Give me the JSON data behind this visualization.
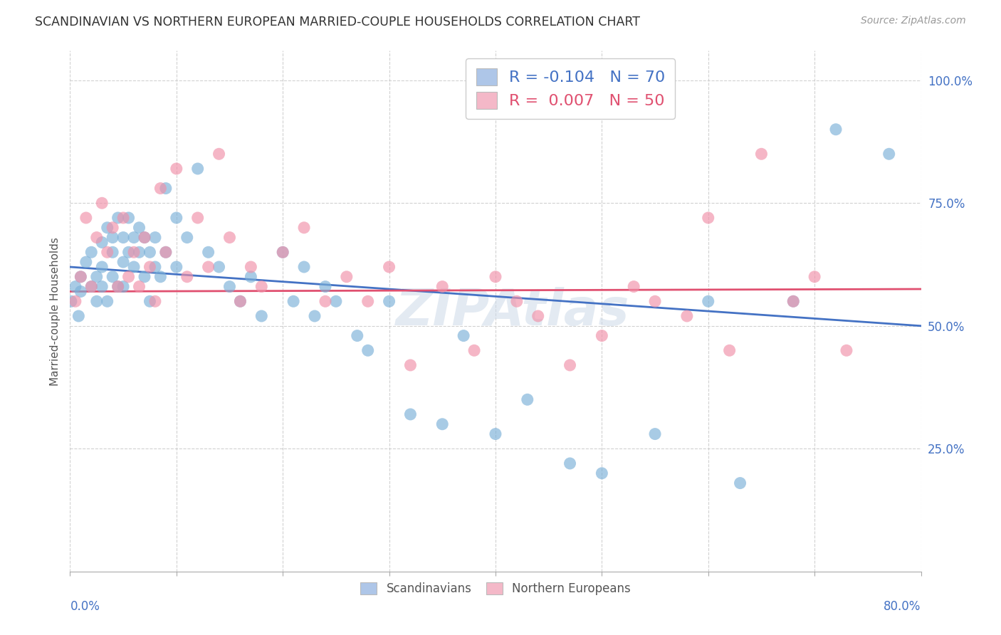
{
  "title": "SCANDINAVIAN VS NORTHERN EUROPEAN MARRIED-COUPLE HOUSEHOLDS CORRELATION CHART",
  "source": "Source: ZipAtlas.com",
  "ylabel": "Married-couple Households",
  "ytick_labels": [
    "25.0%",
    "50.0%",
    "75.0%",
    "100.0%"
  ],
  "ytick_values": [
    0.25,
    0.5,
    0.75,
    1.0
  ],
  "legend_label1": "R = -0.104   N = 70",
  "legend_label2": "R =  0.007   N = 50",
  "legend_color1": "#aec6e8",
  "legend_color2": "#f4b8c8",
  "dot_color1": "#7ab0d8",
  "dot_color2": "#f090a8",
  "trend_color1": "#4472c4",
  "trend_color2": "#e05070",
  "watermark": "ZIPAtlas",
  "xmin": 0.0,
  "xmax": 0.8,
  "ymin": 0.0,
  "ymax": 1.06,
  "trend1_x0": 0.0,
  "trend1_y0": 0.62,
  "trend1_x1": 0.8,
  "trend1_y1": 0.5,
  "trend2_x0": 0.0,
  "trend2_y0": 0.57,
  "trend2_x1": 0.8,
  "trend2_y1": 0.575,
  "scatter1_x": [
    0.001,
    0.005,
    0.008,
    0.01,
    0.01,
    0.015,
    0.02,
    0.02,
    0.025,
    0.025,
    0.03,
    0.03,
    0.03,
    0.035,
    0.035,
    0.04,
    0.04,
    0.04,
    0.045,
    0.045,
    0.05,
    0.05,
    0.05,
    0.055,
    0.055,
    0.06,
    0.06,
    0.065,
    0.065,
    0.07,
    0.07,
    0.075,
    0.075,
    0.08,
    0.08,
    0.085,
    0.09,
    0.09,
    0.1,
    0.1,
    0.11,
    0.12,
    0.13,
    0.14,
    0.15,
    0.16,
    0.17,
    0.18,
    0.2,
    0.21,
    0.22,
    0.23,
    0.24,
    0.25,
    0.27,
    0.28,
    0.3,
    0.32,
    0.35,
    0.37,
    0.4,
    0.43,
    0.47,
    0.5,
    0.55,
    0.6,
    0.63,
    0.68,
    0.72,
    0.77
  ],
  "scatter1_y": [
    0.55,
    0.58,
    0.52,
    0.6,
    0.57,
    0.63,
    0.58,
    0.65,
    0.6,
    0.55,
    0.62,
    0.67,
    0.58,
    0.7,
    0.55,
    0.65,
    0.6,
    0.68,
    0.72,
    0.58,
    0.63,
    0.58,
    0.68,
    0.65,
    0.72,
    0.68,
    0.62,
    0.65,
    0.7,
    0.6,
    0.68,
    0.55,
    0.65,
    0.62,
    0.68,
    0.6,
    0.78,
    0.65,
    0.72,
    0.62,
    0.68,
    0.82,
    0.65,
    0.62,
    0.58,
    0.55,
    0.6,
    0.52,
    0.65,
    0.55,
    0.62,
    0.52,
    0.58,
    0.55,
    0.48,
    0.45,
    0.55,
    0.32,
    0.3,
    0.48,
    0.28,
    0.35,
    0.22,
    0.2,
    0.28,
    0.55,
    0.18,
    0.55,
    0.9,
    0.85
  ],
  "scatter2_x": [
    0.005,
    0.01,
    0.015,
    0.02,
    0.025,
    0.03,
    0.035,
    0.04,
    0.045,
    0.05,
    0.055,
    0.06,
    0.065,
    0.07,
    0.075,
    0.08,
    0.085,
    0.09,
    0.1,
    0.11,
    0.12,
    0.13,
    0.14,
    0.15,
    0.16,
    0.17,
    0.18,
    0.2,
    0.22,
    0.24,
    0.26,
    0.28,
    0.3,
    0.32,
    0.35,
    0.38,
    0.4,
    0.42,
    0.44,
    0.47,
    0.5,
    0.53,
    0.55,
    0.58,
    0.6,
    0.62,
    0.65,
    0.68,
    0.7,
    0.73
  ],
  "scatter2_y": [
    0.55,
    0.6,
    0.72,
    0.58,
    0.68,
    0.75,
    0.65,
    0.7,
    0.58,
    0.72,
    0.6,
    0.65,
    0.58,
    0.68,
    0.62,
    0.55,
    0.78,
    0.65,
    0.82,
    0.6,
    0.72,
    0.62,
    0.85,
    0.68,
    0.55,
    0.62,
    0.58,
    0.65,
    0.7,
    0.55,
    0.6,
    0.55,
    0.62,
    0.42,
    0.58,
    0.45,
    0.6,
    0.55,
    0.52,
    0.42,
    0.48,
    0.58,
    0.55,
    0.52,
    0.72,
    0.45,
    0.85,
    0.55,
    0.6,
    0.45
  ]
}
